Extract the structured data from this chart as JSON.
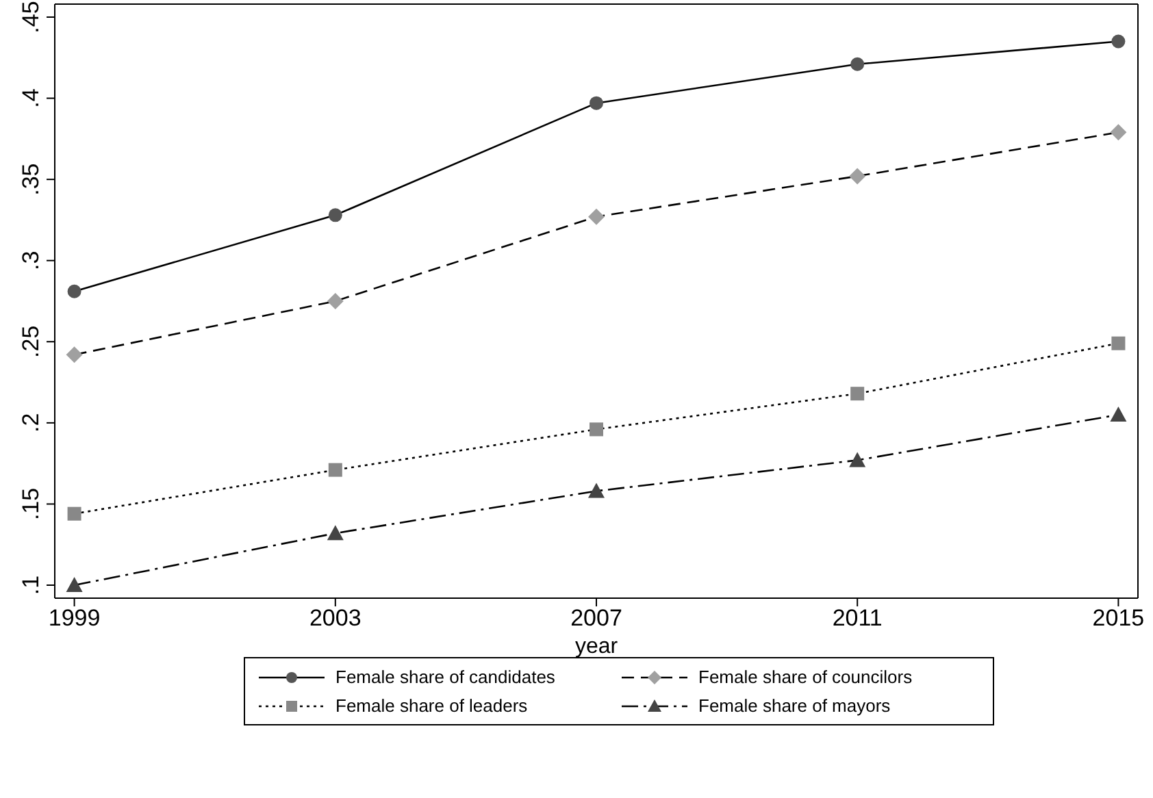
{
  "chart_data": {
    "type": "line",
    "xlabel": "year",
    "x": [
      1999,
      2003,
      2007,
      2011,
      2015
    ],
    "xlim": [
      1998.7,
      2015.3
    ],
    "xticks": [
      1999,
      2003,
      2007,
      2011,
      2015
    ],
    "ylim": [
      0.092,
      0.458
    ],
    "yticks": [
      {
        "value": 0.1,
        "label": ".1"
      },
      {
        "value": 0.15,
        "label": ".15"
      },
      {
        "value": 0.2,
        "label": ".2"
      },
      {
        "value": 0.25,
        "label": ".25"
      },
      {
        "value": 0.3,
        "label": ".3"
      },
      {
        "value": 0.35,
        "label": ".35"
      },
      {
        "value": 0.4,
        "label": ".4"
      },
      {
        "value": 0.45,
        "label": ".45"
      }
    ],
    "grid": false,
    "legend": "bottom",
    "series": [
      {
        "name": "Female share of candidates",
        "color": "#555555",
        "marker": "circle",
        "line_style": "solid",
        "values": [
          0.281,
          0.328,
          0.397,
          0.421,
          0.435
        ]
      },
      {
        "name": "Female share of councilors",
        "color": "#a0a0a0",
        "marker": "diamond",
        "line_style": "dashed",
        "values": [
          0.242,
          0.275,
          0.327,
          0.352,
          0.379
        ]
      },
      {
        "name": "Female share of leaders",
        "color": "#888888",
        "marker": "square",
        "line_style": "dotted",
        "values": [
          0.144,
          0.171,
          0.196,
          0.218,
          0.249
        ]
      },
      {
        "name": "Female share of mayors",
        "color": "#444444",
        "marker": "triangle",
        "line_style": "dashdot",
        "values": [
          0.1,
          0.132,
          0.158,
          0.177,
          0.205
        ]
      }
    ]
  }
}
